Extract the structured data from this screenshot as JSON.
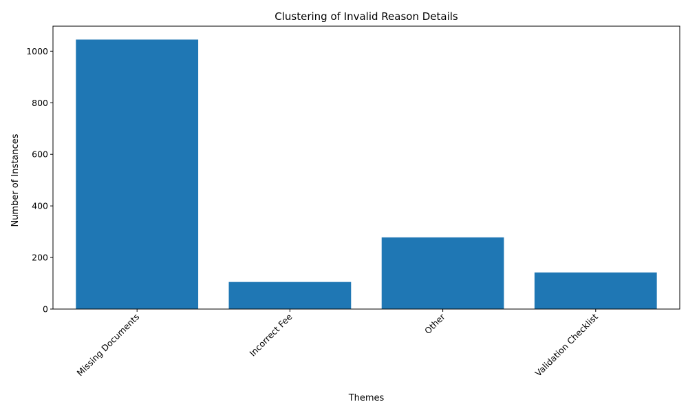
{
  "chart_data": {
    "type": "bar",
    "title": "Clustering of Invalid Reason Details",
    "xlabel": "Themes",
    "ylabel": "Number of Instances",
    "categories": [
      "Missing Documents",
      "Incorrect Fee",
      "Other",
      "Validation Checklist"
    ],
    "values": [
      1045,
      105,
      278,
      142
    ],
    "ylim": [
      0,
      1097
    ],
    "yticks": [
      0,
      200,
      400,
      600,
      800,
      1000
    ],
    "bar_color": "#1f77b4",
    "grid": false,
    "legend": "none",
    "xtick_rotation_deg": 45
  }
}
